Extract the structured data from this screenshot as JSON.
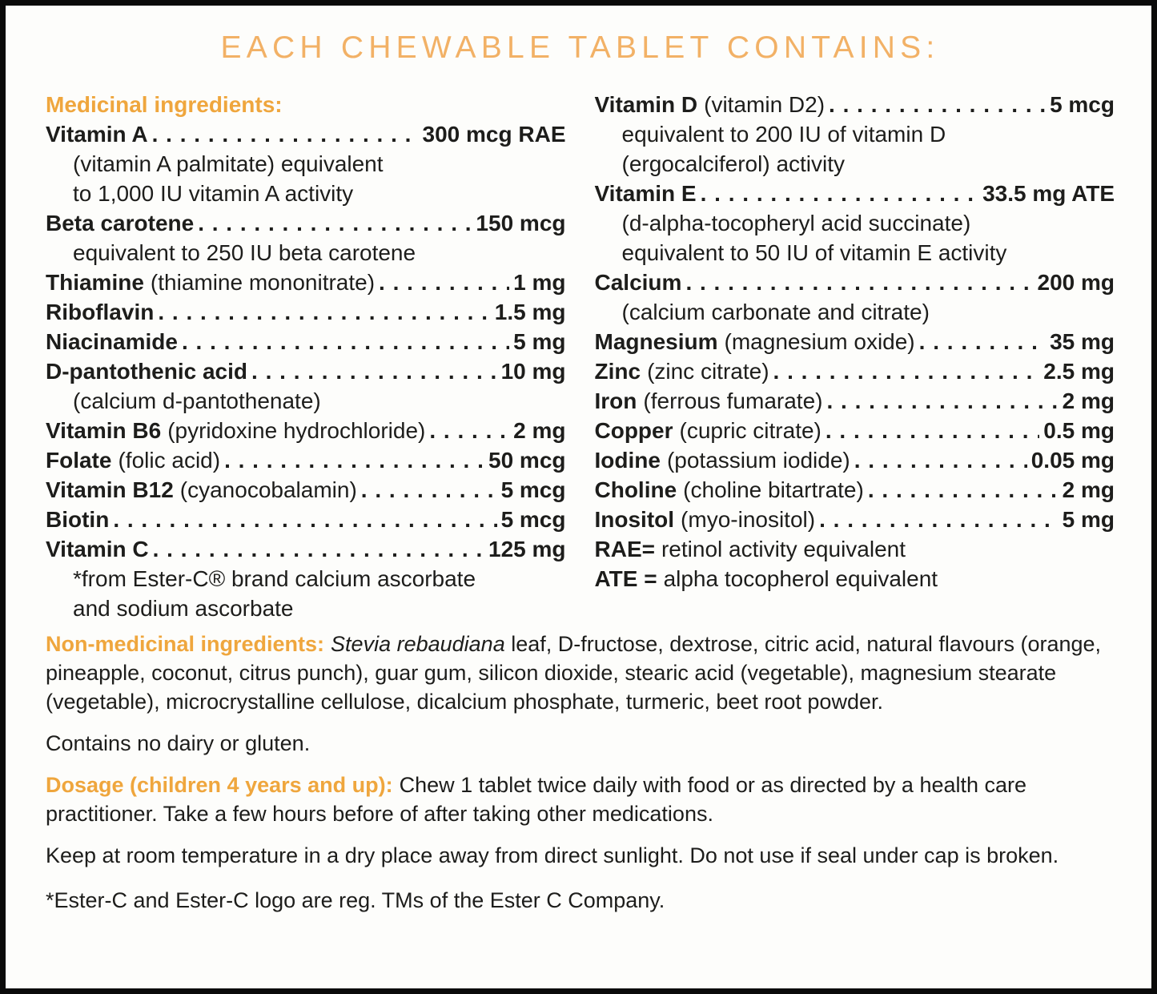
{
  "title": "EACH CHEWABLE TABLET CONTAINS:",
  "medicinal": {
    "heading": "Medicinal ingredients:",
    "left": [
      {
        "name": "Vitamin A",
        "desc": "",
        "value": "300 mcg RAE",
        "subs": [
          "(vitamin A palmitate) equivalent",
          "to 1,000 IU vitamin A activity"
        ]
      },
      {
        "name": "Beta carotene",
        "desc": "",
        "value": "150 mcg",
        "subs": [
          "equivalent to 250 IU beta carotene"
        ]
      },
      {
        "name": "Thiamine",
        "desc": "(thiamine mononitrate)",
        "value": "1 mg"
      },
      {
        "name": "Riboflavin",
        "desc": "",
        "value": "1.5 mg"
      },
      {
        "name": "Niacinamide",
        "desc": "",
        "value": "5 mg"
      },
      {
        "name": "D-pantothenic acid",
        "desc": "",
        "value": "10 mg",
        "subs": [
          "(calcium d-pantothenate)"
        ]
      },
      {
        "name": "Vitamin B6",
        "desc": "(pyridoxine hydrochloride)",
        "value": "2 mg"
      },
      {
        "name": "Folate",
        "desc": "(folic acid)",
        "value": "50 mcg"
      },
      {
        "name": "Vitamin B12",
        "desc": "(cyanocobalamin)",
        "value": "5 mcg"
      },
      {
        "name": "Biotin",
        "desc": "",
        "value": "5 mcg"
      },
      {
        "name": "Vitamin C",
        "desc": "",
        "value": "125 mg",
        "subs": [
          "*from Ester-C® brand calcium ascorbate",
          "and sodium ascorbate"
        ]
      }
    ],
    "right": [
      {
        "name": "Vitamin D",
        "desc": "(vitamin D2)",
        "value": "5 mcg",
        "subs": [
          "equivalent to 200 IU of vitamin D",
          "(ergocalciferol) activity"
        ]
      },
      {
        "name": "Vitamin E",
        "desc": "",
        "value": "33.5 mg ATE",
        "subs": [
          "(d-alpha-tocopheryl acid succinate)",
          "equivalent to 50 IU of vitamin E activity"
        ]
      },
      {
        "name": "Calcium",
        "desc": "",
        "value": "200 mg",
        "subs": [
          "(calcium carbonate and citrate)"
        ]
      },
      {
        "name": "Magnesium",
        "desc": "(magnesium oxide)",
        "value": "35 mg"
      },
      {
        "name": "Zinc",
        "desc": "(zinc citrate)",
        "value": "2.5 mg"
      },
      {
        "name": "Iron",
        "desc": "(ferrous fumarate)",
        "value": "2 mg"
      },
      {
        "name": "Copper",
        "desc": "(cupric citrate)",
        "value": "0.5 mg"
      },
      {
        "name": "Iodine",
        "desc": "(potassium iodide)",
        "value": "0.05 mg"
      },
      {
        "name": "Choline",
        "desc": "(choline bitartrate)",
        "value": "2 mg"
      },
      {
        "name": "Inositol",
        "desc": "(myo-inositol)",
        "value": "5 mg"
      }
    ],
    "notes": [
      {
        "term": "RAE=",
        "text": "retinol activity equivalent"
      },
      {
        "term": "ATE =",
        "text": "alpha tocopherol equivalent"
      }
    ]
  },
  "non_medicinal": {
    "label": "Non-medicinal ingredients:",
    "italic": "Stevia rebaudiana",
    "text": " leaf, D-fructose, dextrose, citric acid, natural flavours (orange, pineapple, coconut, citrus punch), guar gum, silicon dioxide, stearic acid (vegetable), magnesium stearate (vegetable), microcrystalline cellulose, dicalcium phosphate, turmeric, beet root powder."
  },
  "contains_note": "Contains no dairy or gluten.",
  "dosage": {
    "label": "Dosage (children 4 years and up):",
    "text": "Chew 1 tablet twice daily with food or as directed by a health care practitioner. Take a few hours before of after taking other medications."
  },
  "storage": "Keep at room temperature in a dry place away from direct sunlight. Do not use if seal under cap is broken.",
  "trademark": "*Ester-C and Ester-C logo are reg. TMs of the Ester C Company.",
  "colors": {
    "accent_orange": "#efa63d",
    "title_orange": "#f2b166",
    "text": "#1d1d1b",
    "border": "#0a0a0a"
  }
}
